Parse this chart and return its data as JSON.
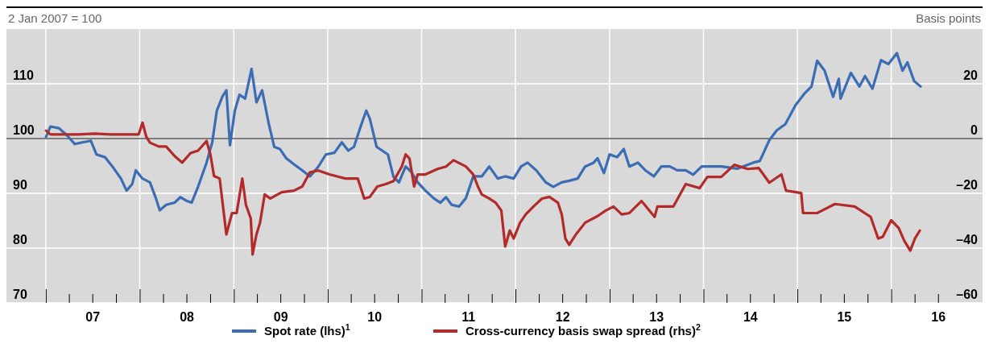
{
  "chart_data": {
    "type": "line",
    "ylabel": "2 Jan 2007 = 100",
    "y2label": "Basis points",
    "legend": "bottom",
    "grid": true,
    "line_style": "solid",
    "xlim": [
      "2006-08-01",
      "2016-12-21"
    ],
    "xticks": [
      {
        "value": "2007-01-01",
        "label": null
      },
      {
        "value": "2007-04-01",
        "label": null
      },
      {
        "value": "2007-07-01",
        "label": "07"
      },
      {
        "value": "2007-10-01",
        "label": null
      },
      {
        "value": "2008-01-01",
        "label": null
      },
      {
        "value": "2008-04-01",
        "label": null
      },
      {
        "value": "2008-07-01",
        "label": "08"
      },
      {
        "value": "2008-10-01",
        "label": null
      },
      {
        "value": "2009-01-01",
        "label": null
      },
      {
        "value": "2009-04-01",
        "label": null
      },
      {
        "value": "2009-07-01",
        "label": "09"
      },
      {
        "value": "2009-10-01",
        "label": null
      },
      {
        "value": "2010-01-01",
        "label": null
      },
      {
        "value": "2010-04-01",
        "label": null
      },
      {
        "value": "2010-07-01",
        "label": "10"
      },
      {
        "value": "2010-10-01",
        "label": null
      },
      {
        "value": "2011-01-01",
        "label": null
      },
      {
        "value": "2011-04-01",
        "label": null
      },
      {
        "value": "2011-07-01",
        "label": "11"
      },
      {
        "value": "2011-10-01",
        "label": null
      },
      {
        "value": "2012-01-01",
        "label": null
      },
      {
        "value": "2012-04-01",
        "label": null
      },
      {
        "value": "2012-07-01",
        "label": "12"
      },
      {
        "value": "2012-10-01",
        "label": null
      },
      {
        "value": "2013-01-01",
        "label": null
      },
      {
        "value": "2013-04-01",
        "label": null
      },
      {
        "value": "2013-07-01",
        "label": "13"
      },
      {
        "value": "2013-10-01",
        "label": null
      },
      {
        "value": "2014-01-01",
        "label": null
      },
      {
        "value": "2014-04-01",
        "label": null
      },
      {
        "value": "2014-07-01",
        "label": "14"
      },
      {
        "value": "2014-10-01",
        "label": null
      },
      {
        "value": "2015-01-01",
        "label": null
      },
      {
        "value": "2015-04-01",
        "label": null
      },
      {
        "value": "2015-07-01",
        "label": "15"
      },
      {
        "value": "2015-10-01",
        "label": null
      },
      {
        "value": "2016-01-01",
        "label": null
      },
      {
        "value": "2016-04-01",
        "label": null
      },
      {
        "value": "2016-07-01",
        "label": "16"
      }
    ],
    "ylim": [
      70,
      120
    ],
    "yticks": [
      70,
      80,
      90,
      100,
      110
    ],
    "y2lim": [
      -60,
      40
    ],
    "y2ticks": [
      {
        "value": -60,
        "label": "–60"
      },
      {
        "value": -40,
        "label": "–40"
      },
      {
        "value": -20,
        "label": "–20"
      },
      0,
      20
    ],
    "ref_lines": [
      {
        "axis": "y",
        "value": 100,
        "color": "#555555",
        "line_style": "solid"
      }
    ],
    "series": [
      {
        "name": "Spot rate (lhs)$^{1}$",
        "color": "#3c6db4",
        "x": [
          "2007-01-02",
          "2007-01-19",
          "2007-02-21",
          "2007-03-22",
          "2007-04-24",
          "2007-05-23",
          "2007-06-25",
          "2007-07-17",
          "2007-08-19",
          "2007-09-17",
          "2007-10-20",
          "2007-11-11",
          "2007-12-03",
          "2007-12-17",
          "2008-01-12",
          "2008-02-10",
          "2008-03-04",
          "2008-03-19",
          "2008-04-13",
          "2008-05-16",
          "2008-06-07",
          "2008-07-03",
          "2008-07-21",
          "2008-08-15",
          "2008-09-17",
          "2008-10-09",
          "2008-10-27",
          "2008-11-18",
          "2008-12-03",
          "2008-12-17",
          "2009-01-05",
          "2009-01-23",
          "2009-02-14",
          "2009-03-11",
          "2009-03-30",
          "2009-04-21",
          "2009-05-16",
          "2009-06-07",
          "2009-06-29",
          "2009-07-24",
          "2009-08-23",
          "2009-09-24",
          "2009-10-24",
          "2009-11-26",
          "2009-12-25",
          "2010-01-27",
          "2010-02-25",
          "2010-03-22",
          "2010-04-13",
          "2010-05-12",
          "2010-05-31",
          "2010-06-14",
          "2010-07-10",
          "2010-08-01",
          "2010-08-23",
          "2010-09-14",
          "2010-10-05",
          "2010-10-31",
          "2010-11-22",
          "2010-12-17",
          "2011-01-16",
          "2011-02-17",
          "2011-03-15",
          "2011-04-06",
          "2011-04-28",
          "2011-05-27",
          "2011-06-22",
          "2011-07-21",
          "2011-08-23",
          "2011-09-21",
          "2011-10-24",
          "2011-11-22",
          "2011-12-25",
          "2012-01-23",
          "2012-02-17",
          "2012-03-22",
          "2012-04-28",
          "2012-05-27",
          "2012-06-29",
          "2012-07-28",
          "2012-08-30",
          "2012-09-28",
          "2012-10-31",
          "2012-11-15",
          "2012-12-10",
          "2013-01-01",
          "2013-01-30",
          "2013-02-25",
          "2013-03-19",
          "2013-04-21",
          "2013-05-20",
          "2013-06-22",
          "2013-07-21",
          "2013-08-23",
          "2013-09-21",
          "2013-10-24",
          "2013-11-22",
          "2013-12-25",
          "2014-03-11",
          "2014-05-12",
          "2014-07-13",
          "2014-08-08",
          "2014-09-14",
          "2014-10-13",
          "2014-11-15",
          "2014-12-25",
          "2015-01-30",
          "2015-02-25",
          "2015-03-19",
          "2015-04-17",
          "2015-05-20",
          "2015-06-11",
          "2015-06-18",
          "2015-07-28",
          "2015-08-30",
          "2015-09-21",
          "2015-10-20",
          "2015-11-22",
          "2015-12-21",
          "2016-01-23",
          "2016-02-14",
          "2016-03-04",
          "2016-03-30",
          "2016-04-24"
        ],
        "values": [
          100.3,
          102.2,
          101.9,
          100.7,
          99.0,
          99.3,
          99.6,
          97.1,
          96.6,
          94.9,
          92.7,
          90.5,
          91.7,
          94.2,
          92.7,
          92.0,
          89.1,
          86.9,
          87.9,
          88.3,
          89.3,
          88.6,
          88.3,
          91.2,
          95.6,
          99.3,
          105.1,
          107.7,
          108.8,
          98.8,
          105.1,
          108.0,
          107.3,
          112.7,
          106.6,
          108.8,
          102.9,
          98.5,
          98.1,
          96.4,
          95.3,
          94.2,
          93.1,
          94.9,
          97.1,
          97.4,
          99.3,
          97.8,
          98.5,
          102.6,
          105.1,
          103.6,
          98.5,
          97.8,
          97.1,
          93.0,
          92.0,
          94.9,
          93.9,
          92.0,
          90.5,
          89.1,
          88.3,
          89.3,
          87.9,
          87.6,
          89.1,
          93.1,
          93.1,
          94.9,
          92.7,
          93.1,
          92.7,
          94.9,
          95.6,
          94.2,
          92.0,
          91.2,
          92.0,
          92.3,
          92.7,
          94.9,
          95.6,
          96.4,
          93.7,
          97.1,
          96.6,
          98.1,
          94.9,
          95.6,
          94.2,
          93.1,
          94.9,
          94.9,
          94.2,
          94.2,
          93.4,
          94.9,
          94.9,
          94.5,
          95.6,
          95.9,
          99.7,
          101.5,
          102.6,
          106.1,
          108.3,
          109.5,
          114.2,
          112.4,
          107.6,
          110.9,
          107.3,
          112.0,
          109.5,
          111.4,
          109.1,
          114.3,
          113.6,
          115.6,
          112.4,
          113.9,
          110.5,
          109.5
        ]
      },
      {
        "name": "Cross-currency basis swap spread (rhs)$^{2}$",
        "color": "#b22a2a",
        "axis": "y2",
        "x": [
          "2007-01-02",
          "2007-01-19",
          "2007-03-08",
          "2007-05-09",
          "2007-07-10",
          "2007-09-10",
          "2007-11-11",
          "2007-12-28",
          "2008-01-12",
          "2008-01-27",
          "2008-02-10",
          "2008-03-15",
          "2008-04-13",
          "2008-05-16",
          "2008-06-14",
          "2008-07-17",
          "2008-08-15",
          "2008-09-17",
          "2008-10-02",
          "2008-10-16",
          "2008-11-07",
          "2008-12-03",
          "2008-12-25",
          "2009-01-12",
          "2009-02-03",
          "2009-02-17",
          "2009-03-08",
          "2009-03-15",
          "2009-03-30",
          "2009-04-13",
          "2009-05-01",
          "2009-05-23",
          "2009-07-06",
          "2009-08-23",
          "2009-09-24",
          "2009-10-24",
          "2009-11-26",
          "2010-01-08",
          "2010-03-11",
          "2010-04-28",
          "2010-05-23",
          "2010-06-14",
          "2010-07-13",
          "2010-08-15",
          "2010-09-14",
          "2010-10-16",
          "2010-10-31",
          "2010-11-15",
          "2010-12-03",
          "2010-12-17",
          "2011-01-16",
          "2011-03-04",
          "2011-04-06",
          "2011-05-05",
          "2011-06-22",
          "2011-07-21",
          "2011-08-08",
          "2011-08-23",
          "2011-09-21",
          "2011-10-16",
          "2011-11-07",
          "2011-11-22",
          "2011-12-10",
          "2011-12-25",
          "2012-01-19",
          "2012-02-10",
          "2012-03-11",
          "2012-04-13",
          "2012-05-12",
          "2012-06-14",
          "2012-06-29",
          "2012-07-13",
          "2012-07-28",
          "2012-08-23",
          "2012-09-28",
          "2012-11-15",
          "2012-12-17",
          "2013-01-16",
          "2013-02-17",
          "2013-03-19",
          "2013-05-05",
          "2013-06-25",
          "2013-07-06",
          "2013-09-06",
          "2013-10-24",
          "2013-12-17",
          "2014-01-16",
          "2014-03-11",
          "2014-05-01",
          "2014-06-22",
          "2014-08-04",
          "2014-09-14",
          "2014-10-31",
          "2014-11-18",
          "2015-01-16",
          "2015-01-23",
          "2015-03-19",
          "2015-05-27",
          "2015-08-12",
          "2015-10-13",
          "2015-11-11",
          "2015-11-29",
          "2016-01-01",
          "2016-01-30",
          "2016-02-21",
          "2016-03-15",
          "2016-04-02",
          "2016-04-21"
        ],
        "values": [
          2.9,
          1.5,
          1.5,
          1.5,
          1.8,
          1.5,
          1.5,
          1.5,
          5.8,
          0.6,
          -1.5,
          -2.9,
          -2.9,
          -6.4,
          -8.8,
          -5.3,
          -4.4,
          -0.9,
          -5.8,
          -13.7,
          -14.6,
          -35.0,
          -27.2,
          -27.2,
          -14.6,
          -24.2,
          -29.2,
          -42.3,
          -35.0,
          -30.7,
          -20.4,
          -21.9,
          -19.6,
          -19.0,
          -17.5,
          -12.3,
          -11.7,
          -13.1,
          -14.6,
          -14.6,
          -21.9,
          -21.3,
          -17.5,
          -16.6,
          -15.5,
          -10.2,
          -5.8,
          -7.3,
          -17.5,
          -13.1,
          -13.1,
          -11.1,
          -10.2,
          -7.9,
          -10.2,
          -13.1,
          -17.5,
          -20.4,
          -21.9,
          -23.4,
          -26.3,
          -39.4,
          -33.6,
          -36.5,
          -30.7,
          -27.7,
          -24.8,
          -21.9,
          -21.3,
          -23.4,
          -27.7,
          -36.5,
          -38.8,
          -35.0,
          -30.7,
          -28.3,
          -26.3,
          -24.8,
          -27.7,
          -27.2,
          -22.8,
          -28.6,
          -24.8,
          -24.8,
          -16.6,
          -18.1,
          -14.0,
          -14.0,
          -9.6,
          -11.1,
          -10.8,
          -16.1,
          -13.1,
          -19.0,
          -19.9,
          -27.2,
          -27.2,
          -23.9,
          -24.8,
          -28.6,
          -36.5,
          -35.9,
          -29.8,
          -32.7,
          -37.4,
          -40.9,
          -36.5,
          -33.6
        ]
      }
    ]
  }
}
